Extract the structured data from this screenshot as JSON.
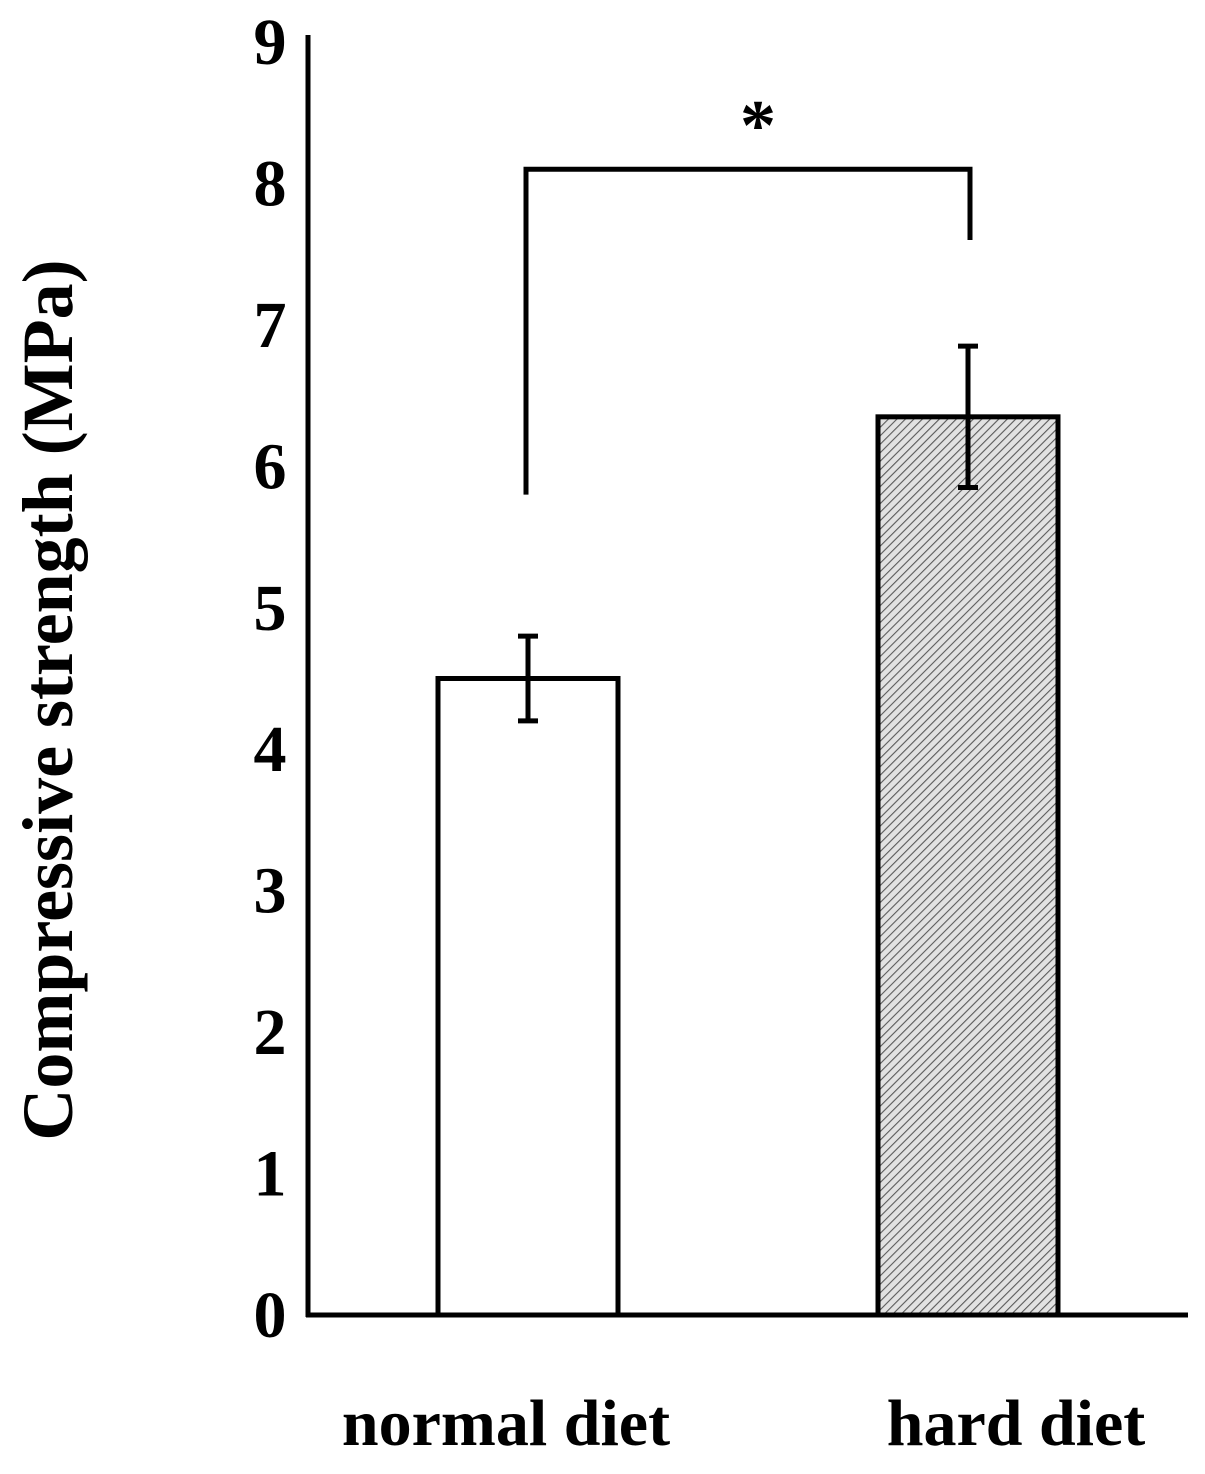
{
  "chart_data": {
    "type": "bar",
    "title": "",
    "xlabel": "",
    "ylabel": "Compressive strength  (MPa)",
    "ylim": [
      0,
      9
    ],
    "yticks": [
      0,
      1,
      2,
      3,
      4,
      5,
      6,
      7,
      8,
      9
    ],
    "categories": [
      "normal diet",
      "hard diet"
    ],
    "values": [
      4.5,
      6.35
    ],
    "error": [
      0.3,
      0.5
    ],
    "bar_styles": [
      {
        "fill": "#ffffff",
        "pattern": "none"
      },
      {
        "fill": "#d0d0d0",
        "pattern": "diagonal-hatch"
      }
    ],
    "significance": {
      "label": "*",
      "between": [
        "normal diet",
        "hard diet"
      ],
      "bracket_level": 8.1,
      "left_drop_to": 5.8,
      "right_drop_to": 7.6
    },
    "grid": false,
    "legend": "none"
  }
}
